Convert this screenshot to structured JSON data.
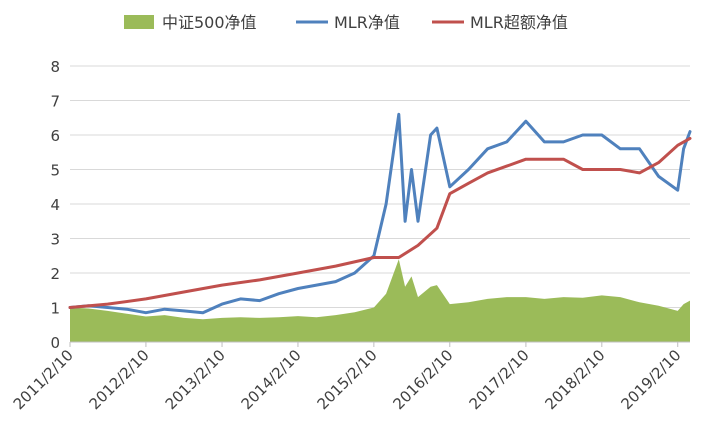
{
  "chart_data": {
    "type": "line",
    "title": "",
    "xlabel": "",
    "ylabel": "",
    "ylim": [
      0,
      8
    ],
    "yticks": [
      0,
      1,
      2,
      3,
      4,
      5,
      6,
      7,
      8
    ],
    "xticks": [
      "2011/2/10",
      "2012/2/10",
      "2013/2/10",
      "2014/2/10",
      "2015/2/10",
      "2016/2/10",
      "2017/2/10",
      "2018/2/10",
      "2019/2/10"
    ],
    "grid": {
      "horizontal": true,
      "vertical": false
    },
    "legend_position": "top",
    "series": [
      {
        "name": "中证500净值",
        "kind": "area",
        "color": "#9BBB59",
        "points": [
          [
            "2011/2/10",
            1.0
          ],
          [
            "2011/5/10",
            0.97
          ],
          [
            "2011/8/10",
            0.9
          ],
          [
            "2011/11/10",
            0.82
          ],
          [
            "2012/2/10",
            0.74
          ],
          [
            "2012/5/10",
            0.78
          ],
          [
            "2012/8/10",
            0.7
          ],
          [
            "2012/11/10",
            0.66
          ],
          [
            "2013/2/10",
            0.7
          ],
          [
            "2013/5/10",
            0.72
          ],
          [
            "2013/8/10",
            0.7
          ],
          [
            "2013/11/10",
            0.72
          ],
          [
            "2014/2/10",
            0.75
          ],
          [
            "2014/5/10",
            0.72
          ],
          [
            "2014/8/10",
            0.78
          ],
          [
            "2014/11/10",
            0.86
          ],
          [
            "2015/2/10",
            1.0
          ],
          [
            "2015/4/10",
            1.4
          ],
          [
            "2015/6/10",
            2.4
          ],
          [
            "2015/7/10",
            1.6
          ],
          [
            "2015/8/10",
            1.9
          ],
          [
            "2015/9/10",
            1.3
          ],
          [
            "2015/11/10",
            1.6
          ],
          [
            "2015/12/10",
            1.65
          ],
          [
            "2016/2/10",
            1.1
          ],
          [
            "2016/5/10",
            1.15
          ],
          [
            "2016/8/10",
            1.25
          ],
          [
            "2016/11/10",
            1.3
          ],
          [
            "2017/2/10",
            1.3
          ],
          [
            "2017/5/10",
            1.25
          ],
          [
            "2017/8/10",
            1.3
          ],
          [
            "2017/11/10",
            1.28
          ],
          [
            "2018/2/10",
            1.35
          ],
          [
            "2018/5/10",
            1.3
          ],
          [
            "2018/8/10",
            1.15
          ],
          [
            "2018/11/10",
            1.05
          ],
          [
            "2019/2/10",
            0.9
          ],
          [
            "2019/3/10",
            1.1
          ],
          [
            "2019/4/10",
            1.2
          ]
        ]
      },
      {
        "name": "MLR净值",
        "kind": "line",
        "color": "#4F81BD",
        "points": [
          [
            "2011/2/10",
            1.0
          ],
          [
            "2011/5/10",
            1.05
          ],
          [
            "2011/8/10",
            1.0
          ],
          [
            "2011/11/10",
            0.95
          ],
          [
            "2012/2/10",
            0.85
          ],
          [
            "2012/5/10",
            0.95
          ],
          [
            "2012/8/10",
            0.9
          ],
          [
            "2012/11/10",
            0.85
          ],
          [
            "2013/2/10",
            1.1
          ],
          [
            "2013/5/10",
            1.25
          ],
          [
            "2013/8/10",
            1.2
          ],
          [
            "2013/11/10",
            1.4
          ],
          [
            "2014/2/10",
            1.55
          ],
          [
            "2014/5/10",
            1.65
          ],
          [
            "2014/8/10",
            1.75
          ],
          [
            "2014/11/10",
            2.0
          ],
          [
            "2015/2/10",
            2.5
          ],
          [
            "2015/4/10",
            4.0
          ],
          [
            "2015/6/10",
            6.6
          ],
          [
            "2015/7/10",
            3.5
          ],
          [
            "2015/8/10",
            5.0
          ],
          [
            "2015/9/10",
            3.5
          ],
          [
            "2015/11/10",
            6.0
          ],
          [
            "2015/12/10",
            6.2
          ],
          [
            "2016/2/10",
            4.5
          ],
          [
            "2016/5/10",
            5.0
          ],
          [
            "2016/8/10",
            5.6
          ],
          [
            "2016/11/10",
            5.8
          ],
          [
            "2017/2/10",
            6.4
          ],
          [
            "2017/5/10",
            5.8
          ],
          [
            "2017/8/10",
            5.8
          ],
          [
            "2017/11/10",
            6.0
          ],
          [
            "2018/2/10",
            6.0
          ],
          [
            "2018/5/10",
            5.6
          ],
          [
            "2018/8/10",
            5.6
          ],
          [
            "2018/11/10",
            4.8
          ],
          [
            "2019/2/10",
            4.4
          ],
          [
            "2019/3/10",
            5.6
          ],
          [
            "2019/4/10",
            6.1
          ]
        ]
      },
      {
        "name": "MLR超额净值",
        "kind": "line",
        "color": "#C0504D",
        "points": [
          [
            "2011/2/10",
            1.0
          ],
          [
            "2011/8/10",
            1.1
          ],
          [
            "2012/2/10",
            1.25
          ],
          [
            "2012/8/10",
            1.45
          ],
          [
            "2013/2/10",
            1.65
          ],
          [
            "2013/8/10",
            1.8
          ],
          [
            "2014/2/10",
            2.0
          ],
          [
            "2014/8/10",
            2.2
          ],
          [
            "2015/2/10",
            2.45
          ],
          [
            "2015/6/10",
            2.45
          ],
          [
            "2015/9/10",
            2.8
          ],
          [
            "2015/12/10",
            3.3
          ],
          [
            "2016/2/10",
            4.3
          ],
          [
            "2016/5/10",
            4.6
          ],
          [
            "2016/8/10",
            4.9
          ],
          [
            "2016/11/10",
            5.1
          ],
          [
            "2017/2/10",
            5.3
          ],
          [
            "2017/8/10",
            5.3
          ],
          [
            "2017/11/10",
            5.0
          ],
          [
            "2018/2/10",
            5.0
          ],
          [
            "2018/5/10",
            5.0
          ],
          [
            "2018/8/10",
            4.9
          ],
          [
            "2018/11/10",
            5.2
          ],
          [
            "2019/2/10",
            5.7
          ],
          [
            "2019/4/10",
            5.9
          ]
        ]
      }
    ]
  }
}
